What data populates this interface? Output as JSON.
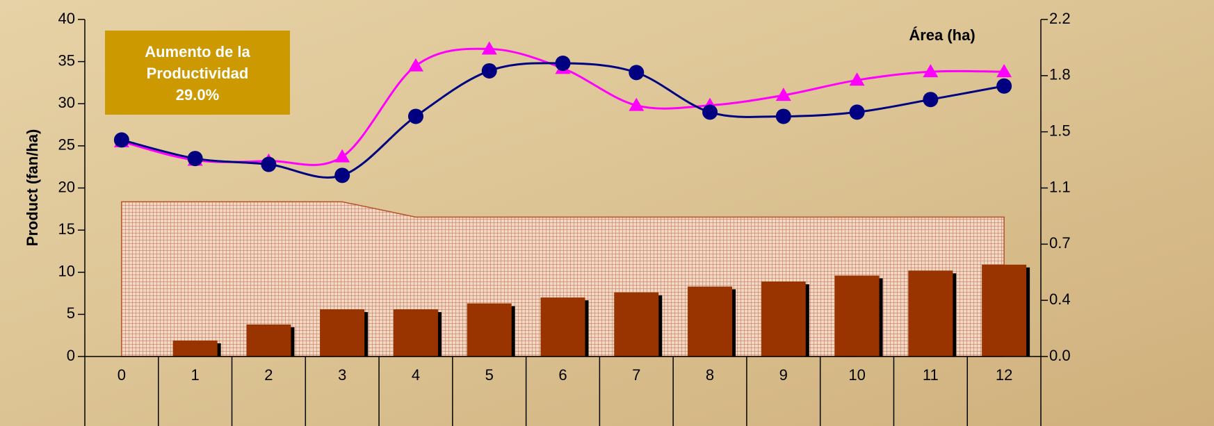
{
  "chart_data": {
    "type": "combo",
    "y_label": "Product (fan/ha)",
    "annotation": [
      "Aumento de la",
      "Productividad",
      "29.0%"
    ],
    "categories": [
      "0",
      "1",
      "2",
      "3",
      "4",
      "5",
      "6",
      "7",
      "8",
      "9",
      "10",
      "11",
      "12"
    ],
    "ylim": [
      0,
      40
    ],
    "yticks": [
      0,
      5,
      10,
      15,
      20,
      25,
      30,
      35,
      40
    ],
    "y2lim": [
      0,
      2.2
    ],
    "y2ticks": [
      {
        "value": 0,
        "label": "0.0"
      },
      {
        "value": 0.3667,
        "label": "0.4"
      },
      {
        "value": 0.7333,
        "label": "0.7"
      },
      1.1,
      {
        "value": 1.4667,
        "label": "1.5"
      },
      {
        "value": 1.8333,
        "label": "1.8"
      },
      2.2
    ],
    "series": [
      {
        "type": "area",
        "name": "Área (ha)",
        "axis": "y2",
        "color": "#b5502a",
        "values": [
          1.01,
          1.01,
          1.01,
          1.01,
          0.91,
          0.91,
          0.91,
          0.91,
          0.91,
          0.91,
          0.91,
          0.91,
          0.91
        ]
      },
      {
        "type": "bar",
        "color": "#993300",
        "values": [
          null,
          1.9,
          3.8,
          5.6,
          5.6,
          6.3,
          7.0,
          7.6,
          8.3,
          8.9,
          9.6,
          10.2,
          10.9
        ]
      },
      {
        "type": "line",
        "marker": "triangle",
        "color": "#ff00ff",
        "values": [
          25.5,
          23.3,
          23.2,
          23.7,
          34.5,
          36.5,
          34.2,
          29.8,
          29.8,
          31.0,
          32.8,
          33.8,
          33.8
        ]
      },
      {
        "type": "line",
        "marker": "circle",
        "color": "#000080",
        "values": [
          25.7,
          23.5,
          22.8,
          21.5,
          28.5,
          33.9,
          34.8,
          33.7,
          29.0,
          28.5,
          29.0,
          30.5,
          32.1
        ]
      }
    ]
  }
}
